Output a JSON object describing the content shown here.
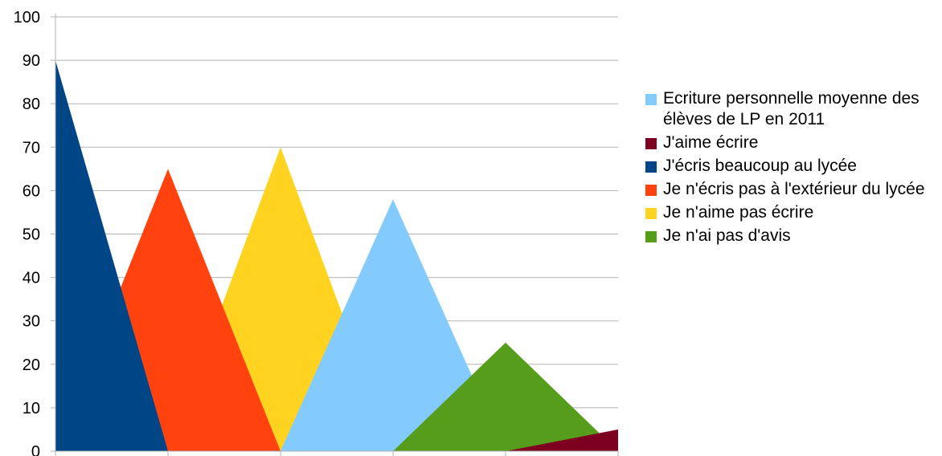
{
  "chart_data": {
    "type": "area",
    "title": "",
    "xlabel": "",
    "ylabel": "",
    "ylim": [
      0,
      100
    ],
    "yticks": [
      0,
      10,
      20,
      30,
      40,
      50,
      60,
      70,
      80,
      90,
      100
    ],
    "grid": "horizontal",
    "legend_position": "right",
    "series": [
      {
        "name": "Ecriture personnelle moyenne des élèves de LP en 2011",
        "color": "#83caff",
        "values": [
          0,
          0,
          0,
          58,
          0,
          0
        ]
      },
      {
        "name": "J'aime écrire",
        "color": "#7e0021",
        "values": [
          0,
          0,
          0,
          0,
          0,
          5
        ]
      },
      {
        "name": "J'écris beaucoup au lycée",
        "color": "#004586",
        "values": [
          90,
          0,
          0,
          0,
          0,
          0
        ]
      },
      {
        "name": "Je n'écris pas à l'extérieur du lycée",
        "color": "#ff420e",
        "values": [
          0,
          65,
          0,
          0,
          0,
          0
        ]
      },
      {
        "name": "Je n'aime pas écrire",
        "color": "#ffd320",
        "values": [
          0,
          0,
          70,
          0,
          0,
          0
        ]
      },
      {
        "name": "Je n'ai pas d'avis",
        "color": "#579d1c",
        "values": [
          0,
          0,
          0,
          0,
          25,
          0
        ]
      }
    ],
    "draw_order": [
      4,
      3,
      2,
      0,
      5,
      1
    ]
  }
}
